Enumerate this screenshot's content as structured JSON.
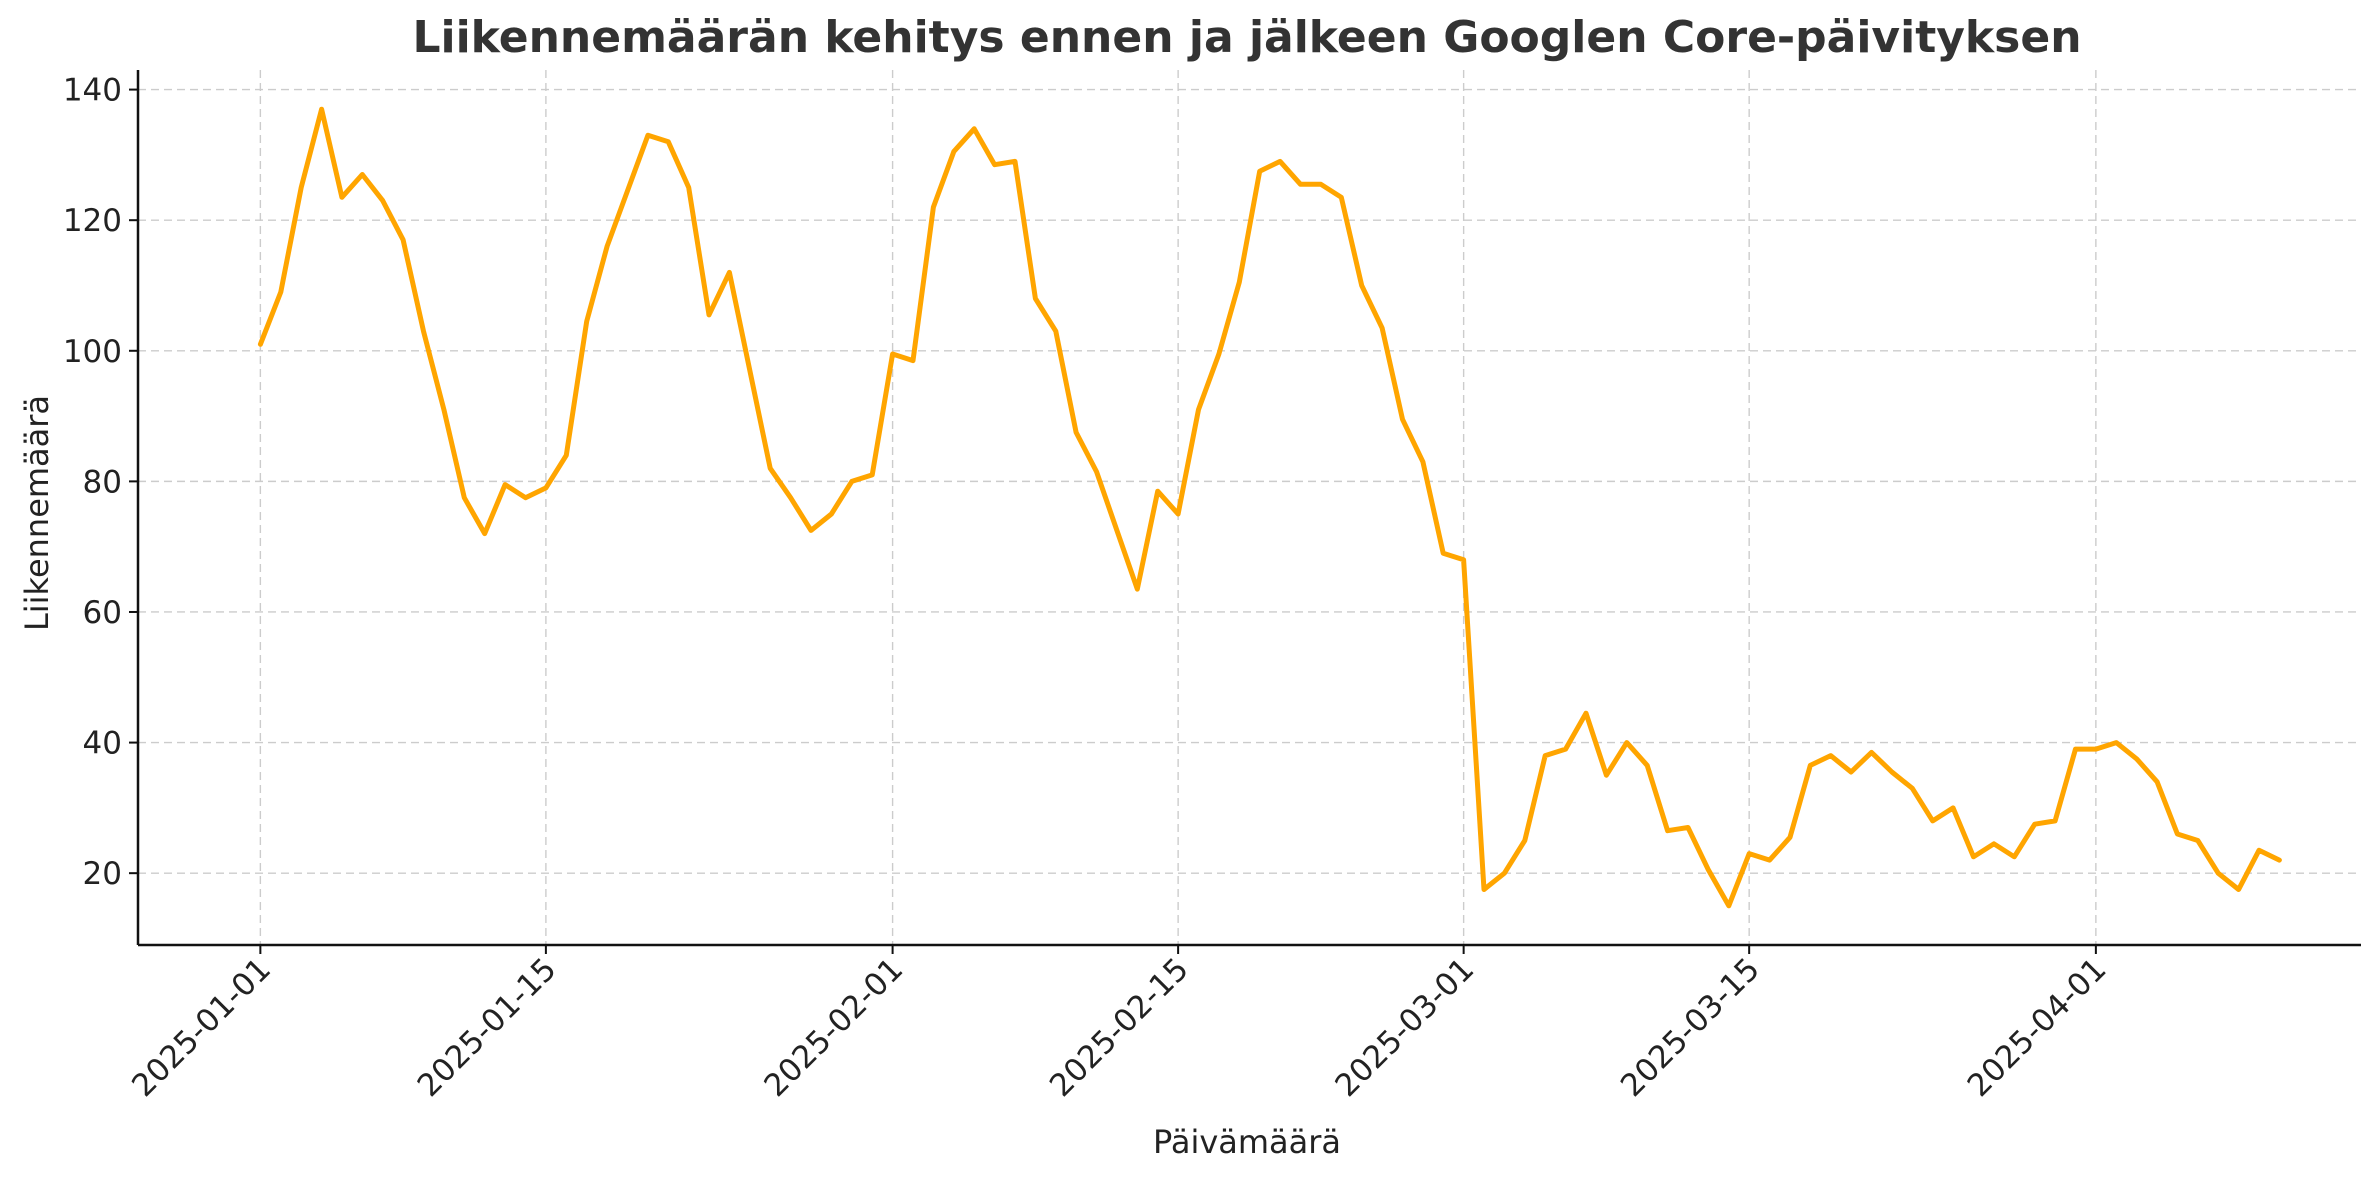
{
  "chart_data": {
    "type": "line",
    "title": "Liikennemäärän kehitys ennen ja jälkeen Googlen Core-päivityksen",
    "xlabel": "Päivämäärä",
    "ylabel": "Liikennemäärä",
    "xlim": [
      "2024-12-26",
      "2025-04-14"
    ],
    "ylim": [
      9,
      143
    ],
    "grid": true,
    "x_ticks": [
      "2025-01-01",
      "2025-01-15",
      "2025-02-01",
      "2025-02-15",
      "2025-03-01",
      "2025-03-15",
      "2025-04-01"
    ],
    "y_ticks": [
      20,
      40,
      60,
      80,
      100,
      120,
      140
    ],
    "colors": {
      "line": "#ffa500"
    },
    "x": [
      "2025-01-01",
      "2025-01-02",
      "2025-01-03",
      "2025-01-04",
      "2025-01-05",
      "2025-01-06",
      "2025-01-07",
      "2025-01-08",
      "2025-01-09",
      "2025-01-10",
      "2025-01-11",
      "2025-01-12",
      "2025-01-13",
      "2025-01-14",
      "2025-01-15",
      "2025-01-16",
      "2025-01-17",
      "2025-01-18",
      "2025-01-19",
      "2025-01-20",
      "2025-01-21",
      "2025-01-22",
      "2025-01-23",
      "2025-01-24",
      "2025-01-25",
      "2025-01-26",
      "2025-01-27",
      "2025-01-28",
      "2025-01-29",
      "2025-01-30",
      "2025-01-31",
      "2025-02-01",
      "2025-02-02",
      "2025-02-03",
      "2025-02-04",
      "2025-02-05",
      "2025-02-06",
      "2025-02-07",
      "2025-02-08",
      "2025-02-09",
      "2025-02-10",
      "2025-02-11",
      "2025-02-12",
      "2025-02-13",
      "2025-02-14",
      "2025-02-15",
      "2025-02-16",
      "2025-02-17",
      "2025-02-18",
      "2025-02-19",
      "2025-02-20",
      "2025-02-21",
      "2025-02-22",
      "2025-02-23",
      "2025-02-24",
      "2025-02-25",
      "2025-02-26",
      "2025-02-27",
      "2025-02-28",
      "2025-03-01",
      "2025-03-02",
      "2025-03-03",
      "2025-03-04",
      "2025-03-05",
      "2025-03-06",
      "2025-03-07",
      "2025-03-08",
      "2025-03-09",
      "2025-03-10",
      "2025-03-11",
      "2025-03-12",
      "2025-03-13",
      "2025-03-14",
      "2025-03-15",
      "2025-03-16",
      "2025-03-17",
      "2025-03-18",
      "2025-03-19",
      "2025-03-20",
      "2025-03-21",
      "2025-03-22",
      "2025-03-23",
      "2025-03-24",
      "2025-03-25",
      "2025-03-26",
      "2025-03-27",
      "2025-03-28",
      "2025-03-29",
      "2025-03-30",
      "2025-03-31",
      "2025-04-01",
      "2025-04-02",
      "2025-04-03",
      "2025-04-04",
      "2025-04-05",
      "2025-04-06",
      "2025-04-07",
      "2025-04-08",
      "2025-04-09",
      "2025-04-10"
    ],
    "series": [
      {
        "values": [
          101,
          109,
          125,
          137,
          123.5,
          127,
          123,
          117,
          103,
          91,
          77.5,
          72,
          79.5,
          77.5,
          79,
          84,
          104.5,
          116,
          124.5,
          133,
          132,
          125,
          105.5,
          112,
          97,
          82,
          77.5,
          72.5,
          75,
          80,
          81,
          99.5,
          98.5,
          122,
          130.5,
          134,
          128.5,
          129,
          108,
          103,
          87.5,
          81.5,
          72.5,
          63.5,
          78.5,
          75,
          91,
          99.5,
          110.5,
          127.5,
          129,
          125.5,
          125.5,
          123.5,
          110,
          103.5,
          89.5,
          83,
          69,
          68,
          17.5,
          20,
          25,
          38,
          39,
          44.5,
          35,
          40,
          36.5,
          26.5,
          27,
          20.5,
          15,
          23,
          22,
          25.5,
          36.5,
          38,
          35.5,
          38.5,
          35.5,
          33,
          28,
          30,
          22.5,
          24.5,
          22.5,
          27.5,
          28,
          39,
          39,
          40,
          37.5,
          34,
          26,
          25,
          20,
          17.5,
          23.5,
          22
        ]
      }
    ]
  }
}
